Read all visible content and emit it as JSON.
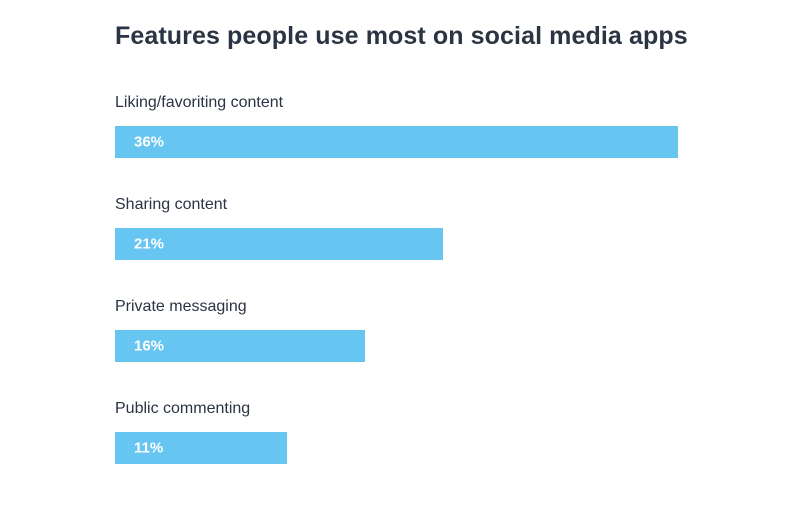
{
  "chart_data": {
    "type": "bar",
    "orientation": "horizontal",
    "title": "Features people use most on social media apps",
    "categories": [
      "Liking/favoriting content",
      "Sharing content",
      "Private messaging",
      "Public commenting"
    ],
    "values": [
      36,
      21,
      16,
      11
    ],
    "value_labels": [
      "36%",
      "21%",
      "16%",
      "11%"
    ],
    "unit": "%",
    "grid": false,
    "legend": "none",
    "colors": {
      "bar": "#66c6f1",
      "title": "#2a3443",
      "label": "#2a3443",
      "value_label": "#ffffff"
    }
  }
}
